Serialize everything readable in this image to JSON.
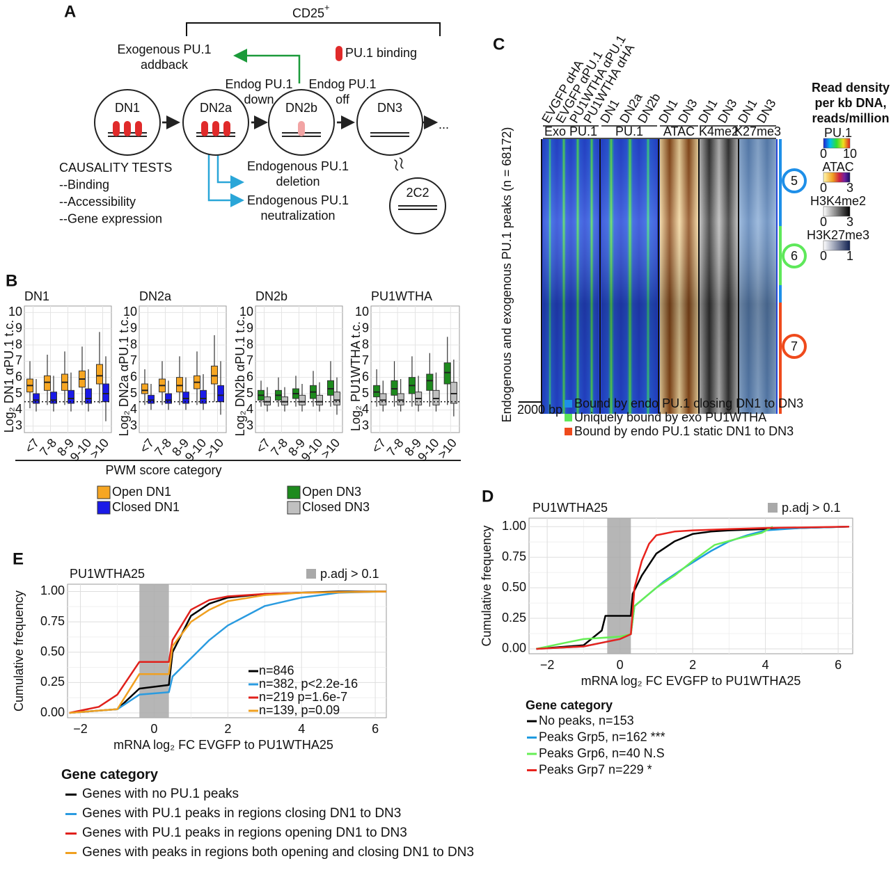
{
  "panel_a": {
    "letter": "A",
    "bracket_label": "CD25",
    "bracket_label_sup": "+",
    "binding_legend": "PU.1 binding",
    "stages": [
      "DN1",
      "DN2a",
      "DN2b",
      "DN3",
      "2C2"
    ],
    "addback": [
      "Exogenous PU.1",
      "addback"
    ],
    "endog_down": [
      "Endog PU.1",
      "down"
    ],
    "endog_off": [
      "Endog PU.1",
      "off"
    ],
    "deletion": [
      "Endogenous PU.1",
      "deletion"
    ],
    "neutralization": [
      "Endogenous PU.1",
      "neutralization"
    ],
    "causality": [
      "CAUSALITY TESTS",
      "--Binding",
      "--Accessibility",
      "--Gene expression"
    ],
    "ellipsis": "..."
  },
  "panel_c": {
    "letter": "C",
    "ylabel": "Endogenous and exogenous PU.1 peaks (n = 68172)",
    "columns": [
      "EVGFP αHA",
      "EVGFP αPU.1",
      "PU1WTHA αPU.1",
      "PU1WTHA αHA",
      "DN1",
      "DN2a",
      "DN2b",
      "DN1",
      "DN3",
      "DN1",
      "DN3",
      "DN1",
      "DN3"
    ],
    "groups": [
      "Exo PU.1",
      "PU.1",
      "ATAC",
      "K4me2",
      "K27me3"
    ],
    "scale_bar": "2000 bp",
    "clusters": [
      {
        "label": "5",
        "color": "#1e8fe8"
      },
      {
        "label": "6",
        "color": "#5ee85a"
      },
      {
        "label": "7",
        "color": "#ef4a1c"
      }
    ],
    "legend": [
      "Bound by endo PU.1 closing DN1 to DN3",
      "Uniquely bound by exo PU1WTHA",
      "Bound by endo PU.1 static DN1 to DN3"
    ],
    "scale_title": [
      "Read density",
      "per kb DNA,",
      "reads/million"
    ],
    "scales": [
      {
        "name": "PU.1",
        "min": 0,
        "max": 10
      },
      {
        "name": "ATAC",
        "min": 0,
        "max": 3
      },
      {
        "name": "H3K4me2",
        "min": 0,
        "max": 3
      },
      {
        "name": "H3K27me3",
        "min": 0,
        "max": 1
      }
    ]
  },
  "chart_data": [
    {
      "type": "box",
      "panel_letter": "B",
      "title": "DN1",
      "ylabel": "Log₂ DN1 αPU.1 t.c.",
      "xlabel": "PWM score category",
      "categories": [
        "<7",
        "7-8",
        "8-9",
        "9-10",
        ">10"
      ],
      "ylim": [
        2.6,
        10.4
      ],
      "yticks": [
        3,
        4,
        5,
        6,
        7,
        8,
        9,
        10
      ],
      "hline": 4.5,
      "series": [
        {
          "name": "Open DN1",
          "color": "#f6a623",
          "values": [
            [
              4.1,
              5.1,
              5.5,
              5.9,
              7.0
            ],
            [
              4.3,
              5.2,
              5.7,
              6.1,
              7.4
            ],
            [
              4.3,
              5.2,
              5.7,
              6.2,
              7.6
            ],
            [
              4.3,
              5.4,
              5.9,
              6.4,
              7.9
            ],
            [
              4.4,
              5.6,
              6.1,
              6.8,
              8.8
            ]
          ]
        },
        {
          "name": "Closed DN1",
          "color": "#1a1ae6",
          "values": [
            [
              3.9,
              4.4,
              4.6,
              5.0,
              5.9
            ],
            [
              3.9,
              4.4,
              4.6,
              5.1,
              6.1
            ],
            [
              3.9,
              4.4,
              4.7,
              5.2,
              6.3
            ],
            [
              3.9,
              4.4,
              4.7,
              5.3,
              6.5
            ],
            [
              3.3,
              4.5,
              5.0,
              5.6,
              7.3
            ]
          ]
        }
      ]
    },
    {
      "type": "box",
      "title": "DN2a",
      "ylabel": "Log₂ DN2a αPU.1 t.c.",
      "categories": [
        "<7",
        "7-8",
        "8-9",
        "9-10",
        ">10"
      ],
      "ylim": [
        2.6,
        10.4
      ],
      "yticks": [
        3,
        4,
        5,
        6,
        7,
        8,
        9,
        10
      ],
      "hline": 4.5,
      "series": [
        {
          "color": "#f6a623",
          "values": [
            [
              4.3,
              5.0,
              5.2,
              5.6,
              6.5
            ],
            [
              4.3,
              5.1,
              5.5,
              5.9,
              7.0
            ],
            [
              4.3,
              5.1,
              5.5,
              6.0,
              7.3
            ],
            [
              4.3,
              5.3,
              5.7,
              6.1,
              7.6
            ],
            [
              4.5,
              5.6,
              6.1,
              6.7,
              8.6
            ]
          ]
        },
        {
          "color": "#1a1ae6",
          "values": [
            [
              4.0,
              4.4,
              4.6,
              4.9,
              5.6
            ],
            [
              4.0,
              4.4,
              4.6,
              5.0,
              5.8
            ],
            [
              4.0,
              4.4,
              4.7,
              5.1,
              6.0
            ],
            [
              4.0,
              4.4,
              4.7,
              5.2,
              6.2
            ],
            [
              3.7,
              4.5,
              4.9,
              5.5,
              7.0
            ]
          ]
        }
      ]
    },
    {
      "type": "box",
      "title": "DN2b",
      "ylabel": "Log₂ DN2b αPU.1 t.c.",
      "categories": [
        "<7",
        "7-8",
        "8-9",
        "9-10",
        ">10"
      ],
      "ylim": [
        2.6,
        10.4
      ],
      "yticks": [
        3,
        4,
        5,
        6,
        7,
        8,
        9,
        10
      ],
      "hline": 4.5,
      "series": [
        {
          "name": "Open DN3",
          "color": "#1d8a1d",
          "values": [
            [
              4.2,
              4.6,
              4.9,
              5.2,
              5.8
            ],
            [
              4.2,
              4.6,
              4.9,
              5.2,
              6.0
            ],
            [
              4.2,
              4.7,
              5.0,
              5.3,
              6.1
            ],
            [
              4.2,
              4.7,
              5.1,
              5.5,
              6.4
            ],
            [
              4.2,
              4.9,
              5.3,
              5.8,
              7.0
            ]
          ]
        },
        {
          "name": "Closed DN3",
          "color": "#c0c0c0",
          "values": [
            [
              3.9,
              4.3,
              4.5,
              4.8,
              5.4
            ],
            [
              3.9,
              4.3,
              4.5,
              4.8,
              5.4
            ],
            [
              3.9,
              4.3,
              4.5,
              4.9,
              5.6
            ],
            [
              3.9,
              4.3,
              4.5,
              4.9,
              5.7
            ],
            [
              3.7,
              4.3,
              4.6,
              5.1,
              6.0
            ]
          ]
        }
      ]
    },
    {
      "type": "box",
      "title": "PU1WTHA",
      "ylabel": "Log₂ PU1WTHA t.c.",
      "categories": [
        "<7",
        "7-8",
        "8-9",
        "9-10",
        ">10"
      ],
      "ylim": [
        2.6,
        10.4
      ],
      "yticks": [
        3,
        4,
        5,
        6,
        7,
        8,
        9,
        10
      ],
      "hline": 4.5,
      "series": [
        {
          "color": "#1d8a1d",
          "values": [
            [
              4.2,
              4.8,
              5.1,
              5.5,
              6.5
            ],
            [
              4.2,
              4.9,
              5.3,
              5.8,
              7.0
            ],
            [
              4.2,
              5.0,
              5.5,
              6.0,
              7.3
            ],
            [
              4.2,
              5.2,
              5.8,
              6.2,
              7.5
            ],
            [
              4.3,
              5.6,
              6.3,
              6.9,
              8.5
            ]
          ]
        },
        {
          "color": "#c0c0c0",
          "values": [
            [
              3.9,
              4.3,
              4.6,
              5.0,
              5.8
            ],
            [
              3.9,
              4.3,
              4.6,
              5.0,
              5.9
            ],
            [
              3.9,
              4.3,
              4.7,
              5.1,
              6.1
            ],
            [
              3.9,
              4.3,
              4.7,
              5.2,
              6.3
            ],
            [
              3.6,
              4.4,
              5.0,
              5.7,
              7.1
            ]
          ]
        }
      ]
    },
    {
      "type": "line",
      "panel_letter": "D",
      "title": "PU1WTHA25",
      "shade": [
        -0.35,
        0.3
      ],
      "shade_label": "p.adj > 0.1",
      "ylabel": "Cumulative frequency",
      "xlabel": "mRNA log₂ FC EVGFP to PU1WTHA25",
      "xlim": [
        -2.5,
        6.4
      ],
      "ylim": [
        -0.04,
        1.07
      ],
      "xticks": [
        {
          "value": -2,
          "label": "−2"
        },
        0,
        2,
        4,
        6
      ],
      "yticks": [
        {
          "value": 0,
          "label": "0.00"
        },
        {
          "value": 0.25,
          "label": "0.25"
        },
        {
          "value": 0.5,
          "label": "0.50"
        },
        {
          "value": 0.75,
          "label": "0.75"
        },
        {
          "value": 1,
          "label": "1.00"
        }
      ],
      "grid": true,
      "legend_title": "Gene category",
      "series": [
        {
          "name": "No peaks, n=153",
          "color": "#000000",
          "x": [
            -2.3,
            -1,
            -0.5,
            -0.4,
            0.3,
            0.35,
            0.6,
            1,
            1.5,
            2,
            2.5,
            3,
            4,
            5,
            6.3
          ],
          "values": [
            0,
            0.03,
            0.15,
            0.27,
            0.27,
            0.45,
            0.6,
            0.78,
            0.88,
            0.94,
            0.96,
            0.97,
            0.98,
            0.99,
            1.0
          ]
        },
        {
          "name": "Peaks Grp5, n=162 ***",
          "color": "#1f9be0",
          "x": [
            -2.3,
            -1,
            -0.5,
            0,
            0.3,
            0.4,
            0.8,
            1.2,
            1.8,
            2.5,
            3,
            3.5,
            4,
            5,
            6.3
          ],
          "values": [
            0,
            0.02,
            0.05,
            0.08,
            0.12,
            0.35,
            0.45,
            0.55,
            0.67,
            0.8,
            0.88,
            0.93,
            0.97,
            0.99,
            1
          ]
        },
        {
          "name": "Peaks Grp6, n=40 N.S",
          "color": "#66ee55",
          "x": [
            -2.3,
            -1.5,
            -1,
            0,
            0.3,
            0.4,
            1,
            1.5,
            2,
            2.6,
            3.2,
            3.9,
            4.2
          ],
          "values": [
            0,
            0.05,
            0.08,
            0.1,
            0.12,
            0.35,
            0.5,
            0.6,
            0.72,
            0.85,
            0.9,
            0.95,
            1.0
          ]
        },
        {
          "name": "Peaks Grp7 n=229 *",
          "color": "#e8231d",
          "x": [
            -2.3,
            -1,
            -0.5,
            0,
            0.3,
            0.4,
            0.6,
            0.8,
            1,
            1.5,
            2,
            3,
            4,
            6.3
          ],
          "values": [
            0,
            0.02,
            0.05,
            0.08,
            0.12,
            0.5,
            0.72,
            0.86,
            0.93,
            0.96,
            0.97,
            0.98,
            0.99,
            1
          ]
        }
      ]
    },
    {
      "type": "line",
      "panel_letter": "E",
      "title": "PU1WTHA25",
      "shade": [
        -0.4,
        0.4
      ],
      "shade_label": "p.adj > 0.1",
      "ylabel": "Cumulative frequency",
      "xlabel": "mRNA log₂ FC EVGFP to PU1WTHA25",
      "xlim": [
        -2.35,
        6.3
      ],
      "ylim": [
        -0.04,
        1.06
      ],
      "xticks": [
        {
          "value": -2,
          "label": "−2"
        },
        0,
        2,
        4,
        6
      ],
      "yticks": [
        {
          "value": 0,
          "label": "0.00"
        },
        {
          "value": 0.25,
          "label": "0.25"
        },
        {
          "value": 0.5,
          "label": "0.50"
        },
        {
          "value": 0.75,
          "label": "0.75"
        },
        {
          "value": 1,
          "label": "1.00"
        }
      ],
      "grid": true,
      "legend_title": "Gene category",
      "series": [
        {
          "name": "Genes with no PU.1 peaks",
          "annotation": "n=846",
          "color": "#000000",
          "x": [
            -2.3,
            -1,
            -0.4,
            0.4,
            0.5,
            1,
            1.5,
            2,
            3,
            4,
            5,
            6.3
          ],
          "values": [
            0,
            0.03,
            0.2,
            0.23,
            0.5,
            0.8,
            0.9,
            0.95,
            0.98,
            0.99,
            1,
            1
          ]
        },
        {
          "name": "Genes with PU.1 peaks in regions closing DN1 to DN3",
          "annotation": "n=382, p<2.2e-16",
          "color": "#2a9be0",
          "x": [
            -2.3,
            -1,
            -0.4,
            0.4,
            0.5,
            1,
            1.5,
            2,
            2.5,
            3,
            4,
            5,
            6.3
          ],
          "values": [
            0,
            0.03,
            0.15,
            0.17,
            0.3,
            0.45,
            0.6,
            0.72,
            0.8,
            0.88,
            0.95,
            0.99,
            1
          ]
        },
        {
          "name": "Genes with PU.1 peaks in regions opening DN1 to DN3",
          "annotation": "n=219 p=1.6e-7",
          "color": "#e0201b",
          "x": [
            -2.3,
            -1.5,
            -1,
            -0.4,
            0.4,
            0.5,
            1,
            1.5,
            2,
            3,
            4,
            6.3
          ],
          "values": [
            0,
            0.05,
            0.15,
            0.42,
            0.42,
            0.6,
            0.85,
            0.93,
            0.96,
            0.98,
            0.99,
            1
          ]
        },
        {
          "name": "Genes with peaks in regions both opening and closing DN1 to DN3",
          "annotation": "n=139, p=0.09",
          "color": "#f0a020",
          "x": [
            -2.3,
            -1,
            -0.4,
            0.4,
            0.5,
            1,
            1.5,
            2,
            3,
            4,
            6.3
          ],
          "values": [
            0,
            0.03,
            0.32,
            0.32,
            0.55,
            0.75,
            0.85,
            0.92,
            0.97,
            0.99,
            1
          ]
        }
      ]
    }
  ]
}
